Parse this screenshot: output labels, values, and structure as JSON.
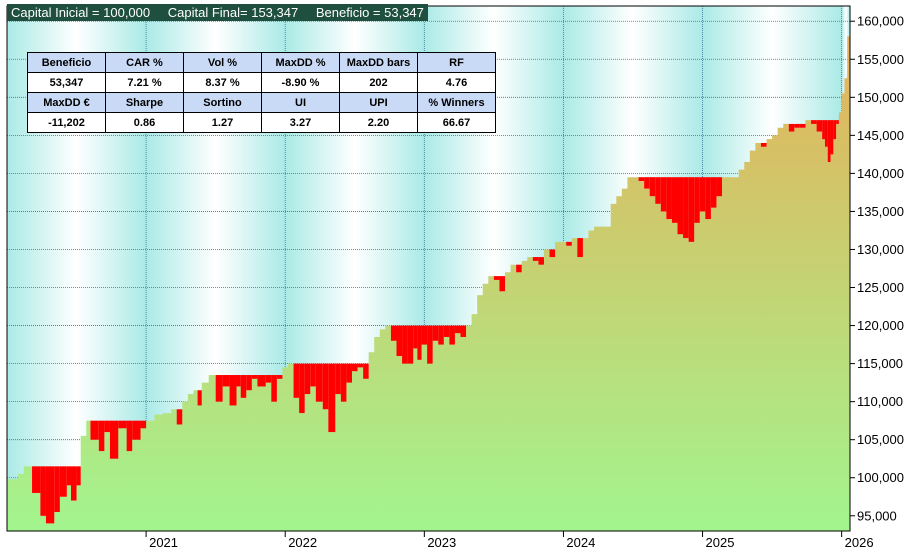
{
  "header": {
    "capital_inicial": "Capital Inicial = 100,000",
    "capital_final": "Capital Final= 153,347",
    "beneficio": "Beneficio = 53,347"
  },
  "stats_table": {
    "row1_headers": [
      "Beneficio",
      "CAR %",
      "Vol %",
      "MaxDD %",
      "MaxDD bars",
      "RF"
    ],
    "row1_values": [
      "53,347",
      "7.21 %",
      "8.37 %",
      "-8.90 %",
      "202",
      "4.76"
    ],
    "row2_headers": [
      "MaxDD €",
      "Sharpe",
      "Sortino",
      "UI",
      "UPI",
      "% Winners"
    ],
    "row2_values": [
      "-11,202",
      "0.86",
      "1.27",
      "3.27",
      "2.20",
      "66.67"
    ]
  },
  "colors": {
    "equity_fill_bottom": "#a2f58e",
    "equity_fill_top": "#e6b15a",
    "drawdown": "#ff0000",
    "header_bg": "#1e4f3f",
    "table_header_bg": "#c9daf6",
    "stripe_light": "#ffffff",
    "stripe_cyan": "#aaeae6"
  },
  "chart_data": {
    "type": "area",
    "title": "",
    "xlabel": "",
    "ylabel": "",
    "y_axis_position": "right",
    "ylim": [
      93000,
      162000
    ],
    "xlim": [
      2020.0,
      2026.06
    ],
    "y_ticks": [
      95000,
      100000,
      105000,
      110000,
      115000,
      120000,
      125000,
      130000,
      135000,
      140000,
      145000,
      150000,
      155000,
      160000
    ],
    "y_tick_labels": [
      "95,000",
      "100,000",
      "105,000",
      "110,000",
      "115,000",
      "120,000",
      "125,000",
      "130,000",
      "135,000",
      "140,000",
      "145,000",
      "150,000",
      "155,000",
      "160,000"
    ],
    "x_ticks": [
      2021,
      2022,
      2023,
      2024,
      2025,
      2026
    ],
    "x_tick_labels": [
      "2021",
      "2022",
      "2023",
      "2024",
      "2025",
      "2026"
    ],
    "grid": true,
    "series": [
      {
        "role": "equity",
        "x": [
          2020.0,
          2020.08,
          2020.12,
          2020.18,
          2020.24,
          2020.28,
          2020.34,
          2020.38,
          2020.43,
          2020.46,
          2020.5,
          2020.53,
          2020.57,
          2020.6,
          2020.66,
          2020.7,
          2020.74,
          2020.8,
          2020.86,
          2020.9,
          2020.96,
          2021.0,
          2021.06,
          2021.12,
          2021.18,
          2021.22,
          2021.26,
          2021.3,
          2021.34,
          2021.37,
          2021.4,
          2021.45,
          2021.5,
          2021.55,
          2021.6,
          2021.65,
          2021.68,
          2021.72,
          2021.76,
          2021.8,
          2021.86,
          2021.9,
          2021.94,
          2021.98,
          2022.02,
          2022.06,
          2022.1,
          2022.14,
          2022.18,
          2022.22,
          2022.27,
          2022.31,
          2022.36,
          2022.4,
          2022.44,
          2022.48,
          2022.52,
          2022.56,
          2022.6,
          2022.64,
          2022.68,
          2022.72,
          2022.76,
          2022.8,
          2022.84,
          2022.88,
          2022.92,
          2022.95,
          2022.98,
          2023.02,
          2023.06,
          2023.1,
          2023.14,
          2023.18,
          2023.22,
          2023.26,
          2023.3,
          2023.34,
          2023.38,
          2023.42,
          2023.46,
          2023.5,
          2023.54,
          2023.58,
          2023.62,
          2023.66,
          2023.7,
          2023.74,
          2023.78,
          2023.82,
          2023.86,
          2023.9,
          2023.94,
          2023.98,
          2024.02,
          2024.06,
          2024.1,
          2024.14,
          2024.18,
          2024.22,
          2024.26,
          2024.3,
          2024.34,
          2024.38,
          2024.42,
          2024.46,
          2024.5,
          2024.54,
          2024.58,
          2024.62,
          2024.66,
          2024.7,
          2024.74,
          2024.78,
          2024.82,
          2024.86,
          2024.9,
          2024.94,
          2024.98,
          2025.02,
          2025.06,
          2025.1,
          2025.14,
          2025.18,
          2025.22,
          2025.26,
          2025.3,
          2025.34,
          2025.38,
          2025.42,
          2025.46,
          2025.5,
          2025.54,
          2025.58,
          2025.62,
          2025.66,
          2025.7,
          2025.74,
          2025.78,
          2025.82,
          2025.86,
          2025.88,
          2025.9,
          2025.92,
          2025.94,
          2025.96,
          2025.98,
          2026.0,
          2026.02,
          2026.04,
          2026.06
        ],
        "values": [
          99800,
          100500,
          101500,
          98000,
          95000,
          94000,
          95500,
          97500,
          99000,
          97000,
          99000,
          105500,
          107500,
          105000,
          103500,
          106000,
          102500,
          106500,
          103500,
          105000,
          106500,
          107500,
          108300,
          108500,
          109000,
          107000,
          110000,
          111000,
          111500,
          109500,
          112500,
          113500,
          110000,
          112000,
          109500,
          112000,
          110500,
          111500,
          113000,
          112000,
          112500,
          110000,
          113000,
          114500,
          115000,
          110500,
          108500,
          111000,
          112000,
          110000,
          109000,
          106000,
          111000,
          110000,
          112500,
          114000,
          114500,
          113000,
          116500,
          118500,
          119500,
          120000,
          118000,
          116000,
          115000,
          115000,
          117000,
          115500,
          117500,
          115000,
          118000,
          117500,
          118500,
          117500,
          119000,
          118500,
          120000,
          121500,
          124000,
          125500,
          126500,
          126000,
          124500,
          127000,
          128000,
          127000,
          128500,
          129000,
          128500,
          128000,
          130000,
          129000,
          131000,
          131000,
          130500,
          131500,
          129000,
          131500,
          132500,
          133000,
          133000,
          133000,
          136000,
          137000,
          138000,
          139500,
          139500,
          139000,
          138000,
          137000,
          136000,
          135000,
          134000,
          133500,
          132000,
          131500,
          131000,
          133500,
          135000,
          134000,
          135500,
          137000,
          139500,
          139500,
          139500,
          140500,
          141500,
          143000,
          144000,
          143500,
          144500,
          145000,
          146000,
          146500,
          145500,
          146000,
          146000,
          147000,
          146500,
          145500,
          144500,
          143500,
          141500,
          142500,
          144500,
          146500,
          148000,
          150500,
          152500,
          158000,
          150000
        ]
      },
      {
        "role": "peak",
        "values": [
          99800,
          100500,
          101500,
          101500,
          101500,
          101500,
          101500,
          101500,
          101500,
          101500,
          101500,
          105500,
          107500,
          107500,
          107500,
          107500,
          107500,
          107500,
          107500,
          107500,
          107500,
          107500,
          108300,
          108500,
          109000,
          109000,
          110000,
          111000,
          111500,
          111500,
          112500,
          113500,
          113500,
          113500,
          113500,
          113500,
          113500,
          113500,
          113500,
          113500,
          113500,
          113500,
          113500,
          114500,
          115000,
          115000,
          115000,
          115000,
          115000,
          115000,
          115000,
          115000,
          115000,
          115000,
          115000,
          115000,
          115000,
          115000,
          116500,
          118500,
          119500,
          120000,
          120000,
          120000,
          120000,
          120000,
          120000,
          120000,
          120000,
          120000,
          120000,
          120000,
          120000,
          120000,
          120000,
          120000,
          120000,
          121500,
          124000,
          125500,
          126500,
          126500,
          126500,
          127000,
          128000,
          128000,
          128500,
          129000,
          129000,
          129000,
          130000,
          130000,
          131000,
          131000,
          131000,
          131500,
          131500,
          131500,
          132500,
          133000,
          133000,
          133000,
          136000,
          137000,
          138000,
          139500,
          139500,
          139500,
          139500,
          139500,
          139500,
          139500,
          139500,
          139500,
          139500,
          139500,
          139500,
          139500,
          139500,
          139500,
          139500,
          139500,
          139500,
          139500,
          139500,
          140500,
          141500,
          143000,
          144000,
          144000,
          144500,
          145000,
          146000,
          146500,
          146500,
          146500,
          146500,
          147000,
          147000,
          147000,
          147000,
          147000,
          147000,
          147000,
          147000,
          147000,
          148000,
          150500,
          152500,
          158000,
          158000
        ]
      }
    ]
  }
}
